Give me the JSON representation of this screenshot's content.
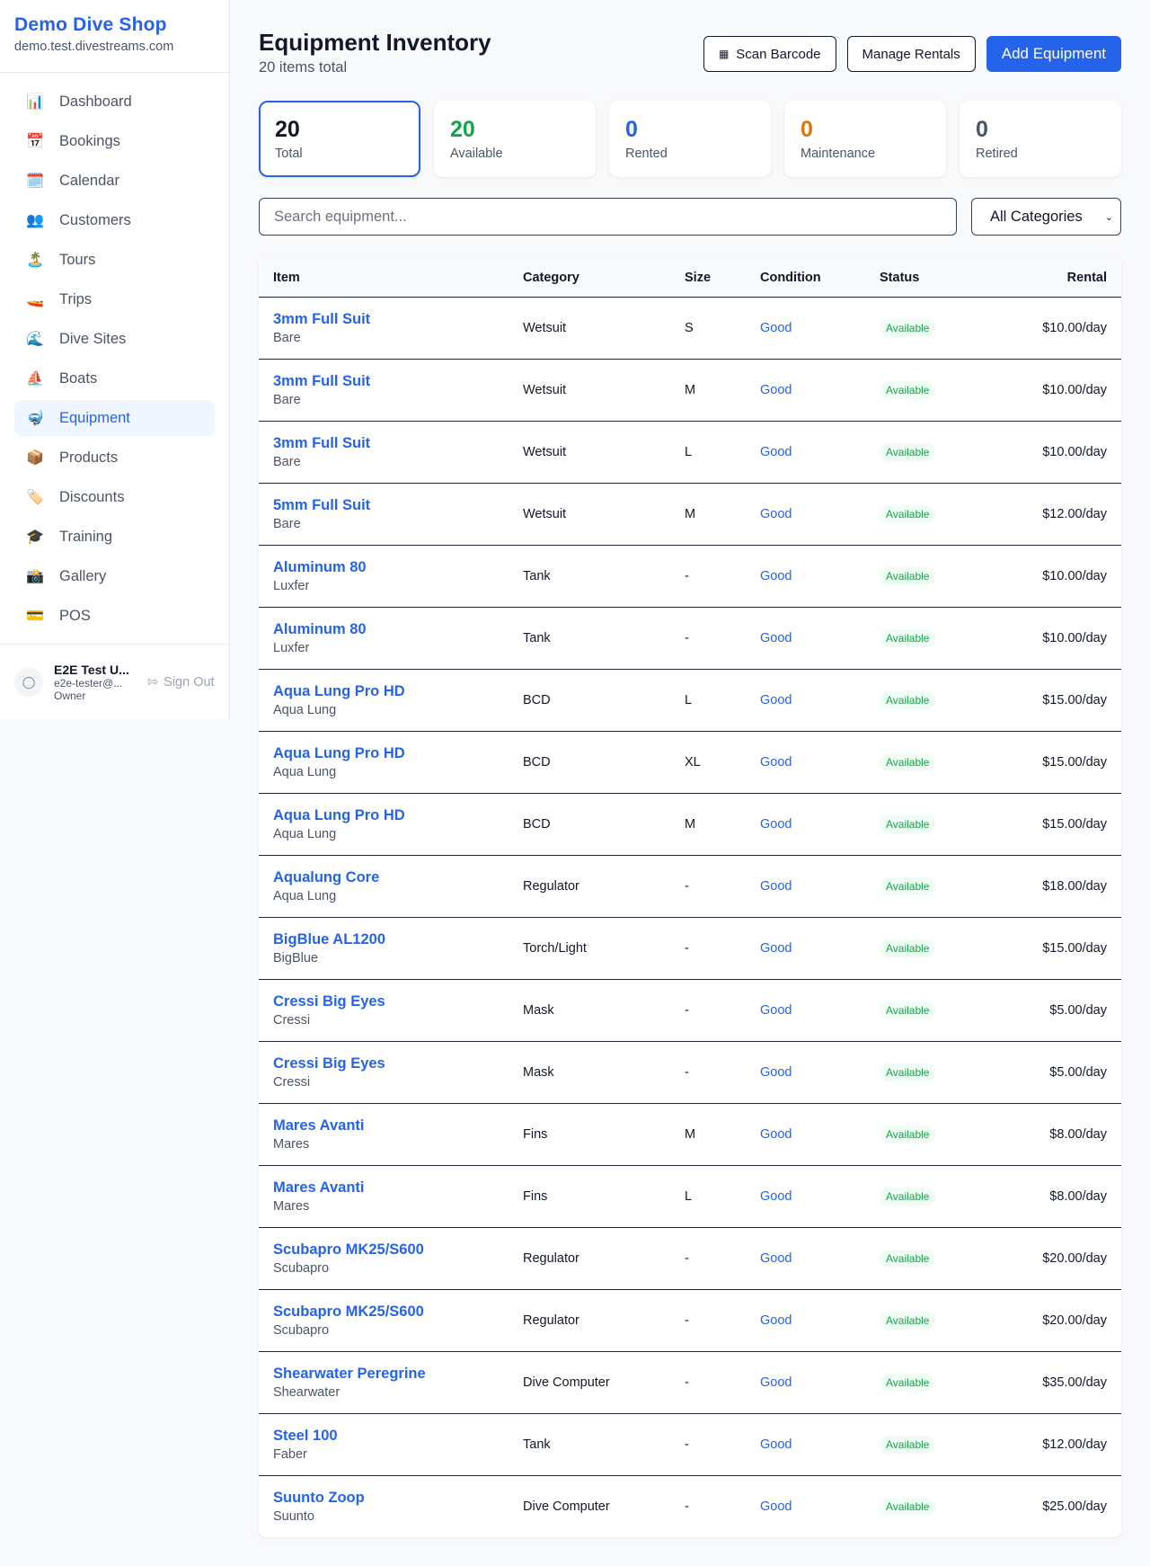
{
  "sidebar": {
    "shop_name": "Demo Dive Shop",
    "domain": "demo.test.divestreams.com",
    "items": [
      {
        "label": "Dashboard",
        "icon": "📊"
      },
      {
        "label": "Bookings",
        "icon": "📅"
      },
      {
        "label": "Calendar",
        "icon": "🗓️"
      },
      {
        "label": "Customers",
        "icon": "👥"
      },
      {
        "label": "Tours",
        "icon": "🏝️"
      },
      {
        "label": "Trips",
        "icon": "🚤"
      },
      {
        "label": "Dive Sites",
        "icon": "🌊"
      },
      {
        "label": "Boats",
        "icon": "⛵"
      },
      {
        "label": "Equipment",
        "icon": "🤿"
      },
      {
        "label": "Products",
        "icon": "📦"
      },
      {
        "label": "Discounts",
        "icon": "🏷️"
      },
      {
        "label": "Training",
        "icon": "🎓"
      },
      {
        "label": "Gallery",
        "icon": "📸"
      },
      {
        "label": "POS",
        "icon": "💳"
      }
    ],
    "active": "Equipment",
    "user": {
      "name": "E2E Test U...",
      "email": "e2e-tester@...",
      "role": "Owner",
      "sign_out": "Sign Out"
    }
  },
  "header": {
    "title": "Equipment Inventory",
    "subtitle": "20 items total",
    "scan": "Scan Barcode",
    "manage": "Manage Rentals",
    "add": "Add Equipment"
  },
  "stats": [
    {
      "value": "20",
      "label": "Total",
      "color": "#111827"
    },
    {
      "value": "20",
      "label": "Available",
      "color": "#16a34a"
    },
    {
      "value": "0",
      "label": "Rented",
      "color": "#2563eb"
    },
    {
      "value": "0",
      "label": "Maintenance",
      "color": "#d97706"
    },
    {
      "value": "0",
      "label": "Retired",
      "color": "#4b5563"
    }
  ],
  "filters": {
    "search_placeholder": "Search equipment...",
    "category": "All Categories"
  },
  "table": {
    "columns": [
      "Item",
      "Category",
      "Size",
      "Condition",
      "Status",
      "Rental"
    ],
    "rows": [
      [
        "3mm Full Suit",
        "Bare",
        "Wetsuit",
        "S",
        "Good",
        "Available",
        "$10.00/day"
      ],
      [
        "3mm Full Suit",
        "Bare",
        "Wetsuit",
        "M",
        "Good",
        "Available",
        "$10.00/day"
      ],
      [
        "3mm Full Suit",
        "Bare",
        "Wetsuit",
        "L",
        "Good",
        "Available",
        "$10.00/day"
      ],
      [
        "5mm Full Suit",
        "Bare",
        "Wetsuit",
        "M",
        "Good",
        "Available",
        "$12.00/day"
      ],
      [
        "Aluminum 80",
        "Luxfer",
        "Tank",
        "-",
        "Good",
        "Available",
        "$10.00/day"
      ],
      [
        "Aluminum 80",
        "Luxfer",
        "Tank",
        "-",
        "Good",
        "Available",
        "$10.00/day"
      ],
      [
        "Aqua Lung Pro HD",
        "Aqua Lung",
        "BCD",
        "L",
        "Good",
        "Available",
        "$15.00/day"
      ],
      [
        "Aqua Lung Pro HD",
        "Aqua Lung",
        "BCD",
        "XL",
        "Good",
        "Available",
        "$15.00/day"
      ],
      [
        "Aqua Lung Pro HD",
        "Aqua Lung",
        "BCD",
        "M",
        "Good",
        "Available",
        "$15.00/day"
      ],
      [
        "Aqualung Core",
        "Aqua Lung",
        "Regulator",
        "-",
        "Good",
        "Available",
        "$18.00/day"
      ],
      [
        "BigBlue AL1200",
        "BigBlue",
        "Torch/Light",
        "-",
        "Good",
        "Available",
        "$15.00/day"
      ],
      [
        "Cressi Big Eyes",
        "Cressi",
        "Mask",
        "-",
        "Good",
        "Available",
        "$5.00/day"
      ],
      [
        "Cressi Big Eyes",
        "Cressi",
        "Mask",
        "-",
        "Good",
        "Available",
        "$5.00/day"
      ],
      [
        "Mares Avanti",
        "Mares",
        "Fins",
        "M",
        "Good",
        "Available",
        "$8.00/day"
      ],
      [
        "Mares Avanti",
        "Mares",
        "Fins",
        "L",
        "Good",
        "Available",
        "$8.00/day"
      ],
      [
        "Scubapro MK25/S600",
        "Scubapro",
        "Regulator",
        "-",
        "Good",
        "Available",
        "$20.00/day"
      ],
      [
        "Scubapro MK25/S600",
        "Scubapro",
        "Regulator",
        "-",
        "Good",
        "Available",
        "$20.00/day"
      ],
      [
        "Shearwater Peregrine",
        "Shearwater",
        "Dive Computer",
        "-",
        "Good",
        "Available",
        "$35.00/day"
      ],
      [
        "Steel 100",
        "Faber",
        "Tank",
        "-",
        "Good",
        "Available",
        "$12.00/day"
      ],
      [
        "Suunto Zoop",
        "Suunto",
        "Dive Computer",
        "-",
        "Good",
        "Available",
        "$25.00/day"
      ]
    ]
  }
}
